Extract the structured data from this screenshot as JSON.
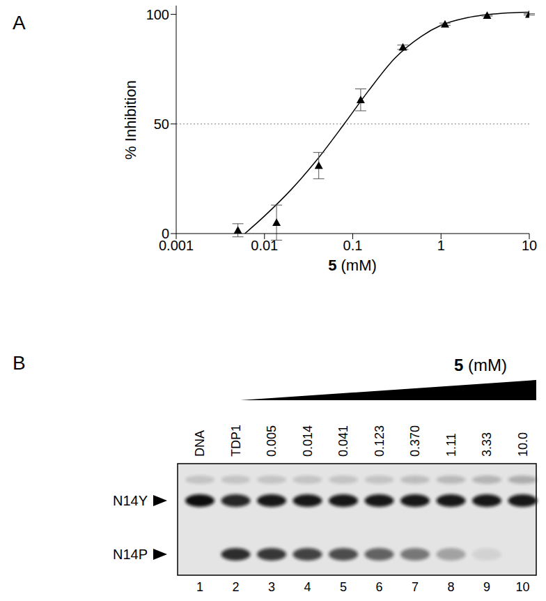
{
  "chart_data": {
    "type": "scatter",
    "panel_label": "A",
    "xlabel": "5 (mM)",
    "ylabel": "% Inhibition",
    "log": "x",
    "xlim": [
      0.001,
      10
    ],
    "xticks": [
      0.001,
      0.01,
      0.1,
      1,
      10
    ],
    "ylim": [
      0,
      104
    ],
    "yticks": [
      0,
      50,
      100
    ],
    "color": "#000000",
    "marker": "triangle",
    "x": [
      0.005,
      0.0137,
      0.0412,
      0.123,
      0.37,
      1.11,
      3.33,
      10
    ],
    "values": [
      1.5,
      5,
      31,
      61,
      85,
      95.5,
      99.5,
      100
    ],
    "errors": [
      3,
      8,
      6,
      5,
      1,
      0.5,
      0.3,
      0.3
    ],
    "fit": {
      "x": [
        0.006,
        0.01,
        0.02,
        0.04,
        0.08,
        0.15,
        0.3,
        0.6,
        1,
        2,
        5,
        10
      ],
      "values": [
        0,
        8,
        20,
        34,
        50,
        65,
        80,
        90,
        95,
        98.5,
        100.5,
        101
      ],
      "line_style": "solid",
      "color": "#000000"
    },
    "reference_line": {
      "y": 50,
      "line_style": "dotted",
      "color": "#808080"
    }
  },
  "gel": {
    "panel_label": "B",
    "title": "5 (mM)",
    "lanes": [
      "DNA",
      "TDP1",
      "0.005",
      "0.014",
      "0.041",
      "0.123",
      "0.370",
      "1.11",
      "3.33",
      "10.0"
    ],
    "lane_numbers": [
      1,
      2,
      3,
      4,
      5,
      6,
      7,
      8,
      9,
      10
    ],
    "bands": [
      {
        "intensity": [
          0.15,
          0.15,
          0.15,
          0.15,
          0.15,
          0.15,
          0.18,
          0.2,
          0.22,
          0.25
        ]
      },
      {
        "label": "N14Y",
        "intensity": [
          1,
          0.88,
          0.95,
          0.95,
          0.95,
          0.95,
          0.95,
          0.95,
          0.95,
          0.95
        ]
      },
      {
        "label": "N14P",
        "intensity": [
          0,
          0.85,
          0.8,
          0.75,
          0.7,
          0.6,
          0.5,
          0.3,
          0.08,
          0
        ]
      }
    ]
  }
}
